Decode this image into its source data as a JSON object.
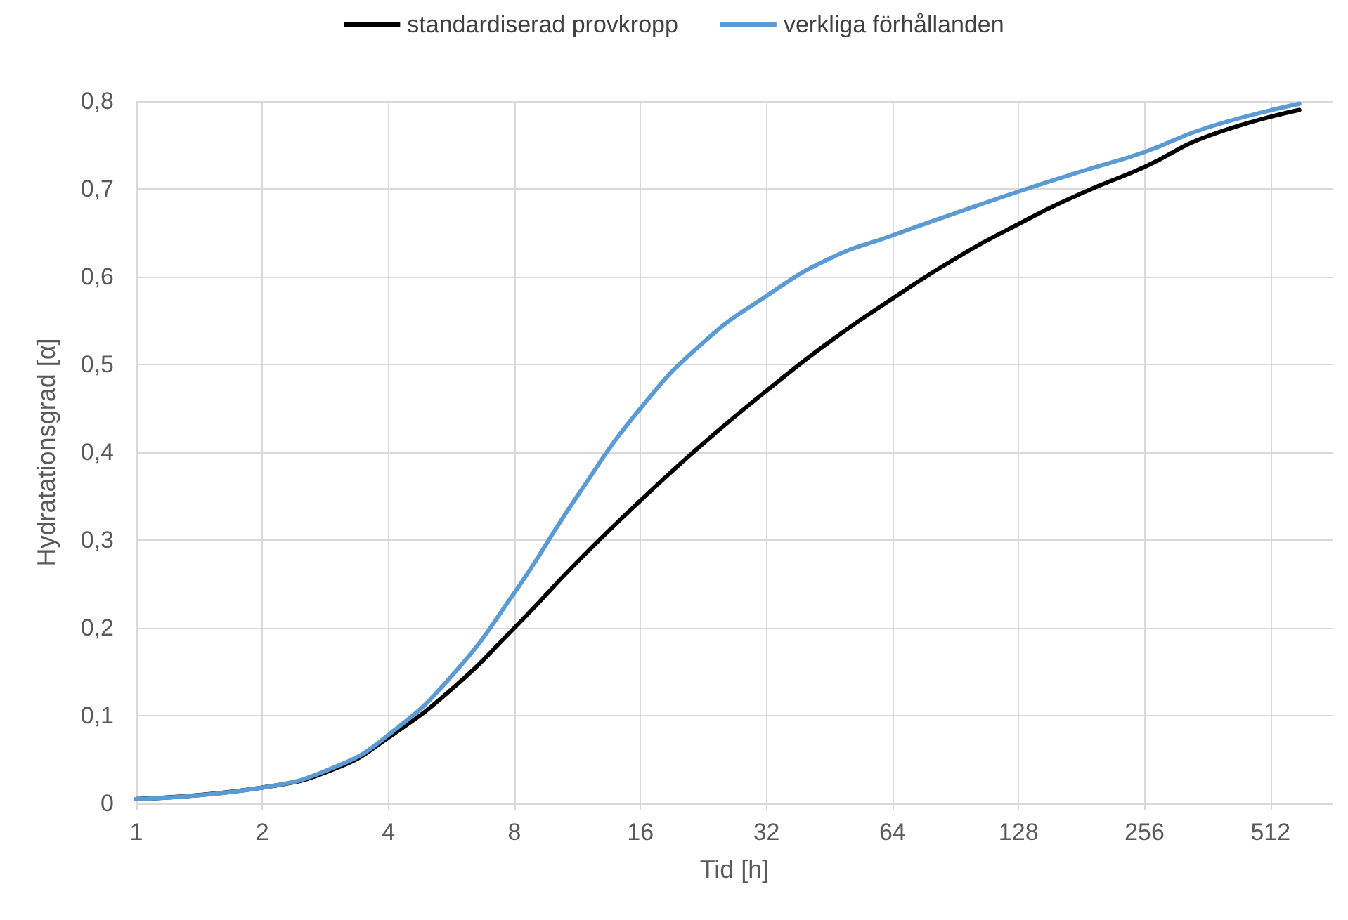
{
  "chart_data": {
    "type": "line",
    "xlabel": "Tid [h]",
    "ylabel": "Hydratationsgrad [α]",
    "log": "x",
    "xlim": [
      1,
      720
    ],
    "xticks": [
      1,
      2,
      4,
      8,
      16,
      32,
      64,
      128,
      256,
      512
    ],
    "ylim": [
      0,
      0.8
    ],
    "yticks": [
      {
        "value": 0,
        "label": "0"
      },
      {
        "value": 0.1,
        "label": "0,1"
      },
      {
        "value": 0.2,
        "label": "0,2"
      },
      {
        "value": 0.3,
        "label": "0,3"
      },
      {
        "value": 0.4,
        "label": "0,4"
      },
      {
        "value": 0.5,
        "label": "0,5"
      },
      {
        "value": 0.6,
        "label": "0,6"
      },
      {
        "value": 0.7,
        "label": "0,7"
      },
      {
        "value": 0.8,
        "label": "0,8"
      }
    ],
    "grid": true,
    "legend": "top",
    "marker": "none",
    "line_style": "solid",
    "x": [
      1,
      2,
      3,
      4,
      5.66,
      8,
      11.3,
      16,
      22.6,
      32,
      45,
      64,
      90,
      128,
      181,
      256,
      362,
      600
    ],
    "series": [
      {
        "name": "standardiserad provkropp",
        "color": "#000000",
        "values": [
          0.005,
          0.018,
          0.04,
          0.075,
          0.13,
          0.2,
          0.275,
          0.345,
          0.41,
          0.47,
          0.525,
          0.575,
          0.62,
          0.66,
          0.695,
          0.725,
          0.76,
          0.79
        ]
      },
      {
        "name": "verkliga förhållanden",
        "color": "#5b9bd5",
        "values": [
          0.005,
          0.018,
          0.042,
          0.078,
          0.145,
          0.24,
          0.35,
          0.45,
          0.525,
          0.578,
          0.62,
          0.647,
          0.672,
          0.697,
          0.72,
          0.742,
          0.77,
          0.797
        ]
      }
    ]
  }
}
